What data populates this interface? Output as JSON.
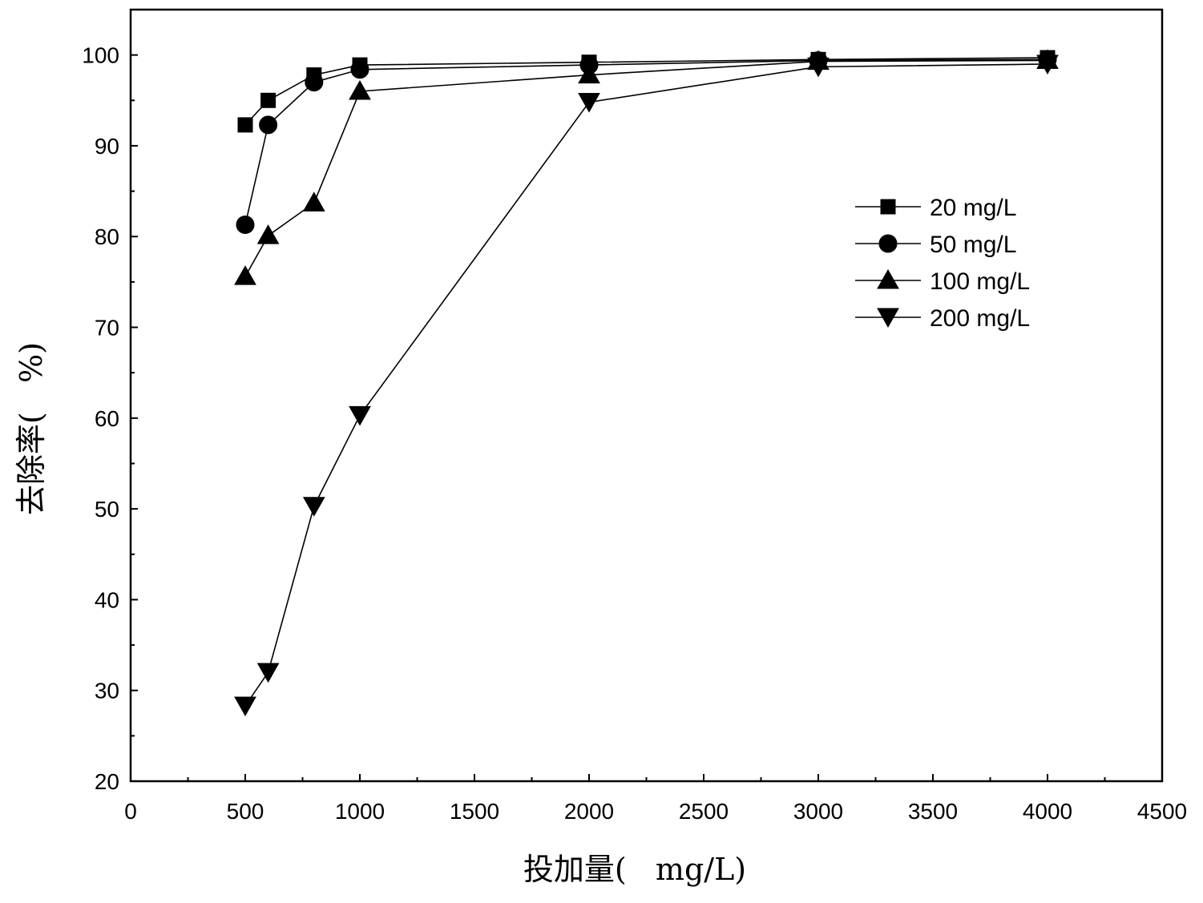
{
  "chart_data": {
    "type": "line",
    "xlabel": "投加量(   mg/L)",
    "ylabel": "去除率(   %)",
    "xlim": [
      0,
      4500
    ],
    "ylim": [
      20,
      105
    ],
    "xticks": [
      0,
      500,
      1000,
      1500,
      2000,
      2500,
      3000,
      3500,
      4000,
      4500
    ],
    "xtick_labels": [
      "0",
      "500",
      "1000",
      "1500",
      "2000",
      "2500",
      "3000",
      "3500",
      "4000",
      "4500"
    ],
    "yticks": [
      20,
      30,
      40,
      50,
      60,
      70,
      80,
      90,
      100
    ],
    "ytick_labels": [
      "20",
      "30",
      "40",
      "50",
      "60",
      "70",
      "80",
      "90",
      "100"
    ],
    "grid": false,
    "legend_position": "right-upper",
    "colors": {
      "series": "#000000",
      "background": "#ffffff"
    },
    "series": [
      {
        "name": "20 mg/L",
        "marker": "square",
        "x": [
          500,
          600,
          800,
          1000,
          2000,
          3000,
          4000
        ],
        "y": [
          92.3,
          95.0,
          97.8,
          98.9,
          99.2,
          99.5,
          99.7
        ]
      },
      {
        "name": "50 mg/L",
        "marker": "circle",
        "x": [
          500,
          600,
          800,
          1000,
          2000,
          3000,
          4000
        ],
        "y": [
          81.3,
          92.3,
          97.0,
          98.4,
          98.9,
          99.4,
          99.5
        ]
      },
      {
        "name": "100 mg/L",
        "marker": "triangle-up",
        "x": [
          500,
          600,
          800,
          1000,
          2000,
          3000,
          4000
        ],
        "y": [
          75.6,
          80.1,
          83.7,
          96.0,
          97.8,
          99.3,
          99.4
        ]
      },
      {
        "name": "200 mg/L",
        "marker": "triangle-down",
        "x": [
          500,
          600,
          800,
          1000,
          2000,
          3000,
          4000
        ],
        "y": [
          28.3,
          32.0,
          50.3,
          60.3,
          94.8,
          98.7,
          99.0
        ]
      }
    ]
  }
}
